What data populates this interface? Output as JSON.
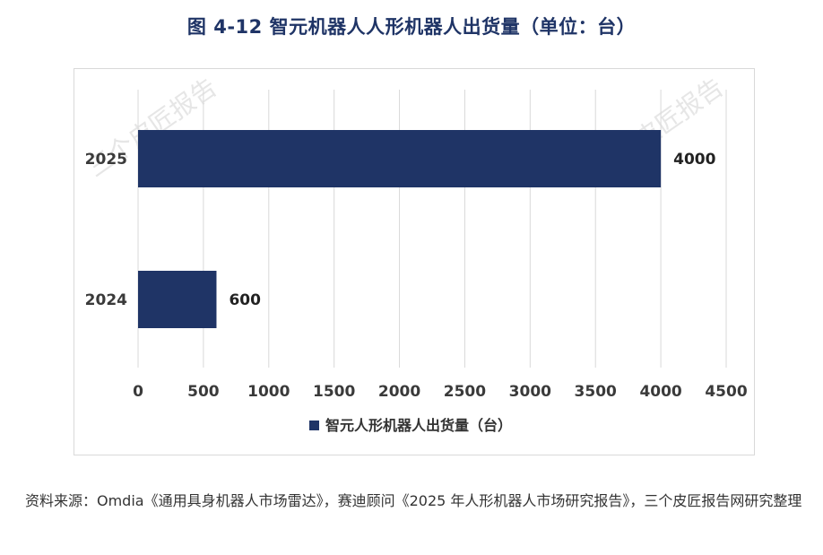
{
  "title": "图 4-12  智元机器人人形机器人出货量（单位：台）",
  "watermark": "三个皮匠报告",
  "source": "资料来源：Omdia《通用具身机器人市场雷达》，赛迪顾问《2025 年人形机器人市场研究报告》，三个皮匠报告网研究整理",
  "colors": {
    "bar": "#1f3466",
    "grid": "#d9d9d9",
    "title": "#1f3466"
  },
  "chart_data": {
    "type": "bar",
    "orientation": "horizontal",
    "categories": [
      "2025",
      "2024"
    ],
    "series": [
      {
        "name": "智元人形机器人出货量（台）",
        "values": [
          4000,
          600
        ]
      }
    ],
    "data_labels": [
      "4000",
      "600"
    ],
    "xlim": [
      0,
      4500
    ],
    "xticks": [
      0,
      500,
      1000,
      1500,
      2000,
      2500,
      3000,
      3500,
      4000,
      4500
    ],
    "grid": "vertical",
    "legend": "bottom-center"
  }
}
